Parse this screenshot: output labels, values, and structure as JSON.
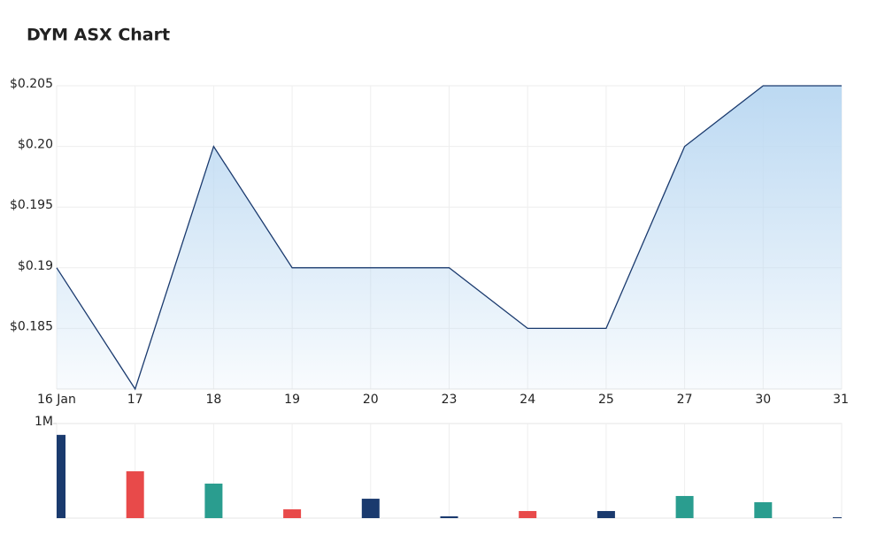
{
  "chart_data": [
    {
      "type": "area",
      "title": "DYM ASX Chart",
      "categories": [
        "16 Jan",
        "17",
        "18",
        "19",
        "20",
        "23",
        "24",
        "25",
        "27",
        "30",
        "31"
      ],
      "values": [
        0.19,
        0.18,
        0.2,
        0.19,
        0.19,
        0.19,
        0.185,
        0.185,
        0.2,
        0.205,
        0.205
      ],
      "color": "#1a3a6e",
      "fill": "#bcd9f2",
      "ylim": [
        0.18,
        0.205
      ],
      "yticks": [
        {
          "value": 0.205,
          "label": "$0.205"
        },
        {
          "value": 0.2,
          "label": "$0.20"
        },
        {
          "value": 0.195,
          "label": "$0.195"
        },
        {
          "value": 0.19,
          "label": "$0.19"
        },
        {
          "value": 0.185,
          "label": "$0.185"
        }
      ],
      "grid": true
    },
    {
      "type": "bar",
      "values": [
        880000,
        495000,
        365000,
        93000,
        205000,
        19000,
        75000,
        75000,
        234000,
        168000,
        9000
      ],
      "colors": [
        "#1a3a6e",
        "#e84a4a",
        "#2a9d8f",
        "#e84a4a",
        "#1a3a6e",
        "#1a3a6e",
        "#e84a4a",
        "#1a3a6e",
        "#2a9d8f",
        "#2a9d8f",
        "#1a3a6e"
      ],
      "ylim": [
        0,
        1000000
      ],
      "yticks": [
        {
          "value": 1000000,
          "label": "1M"
        }
      ],
      "grid": true
    }
  ]
}
